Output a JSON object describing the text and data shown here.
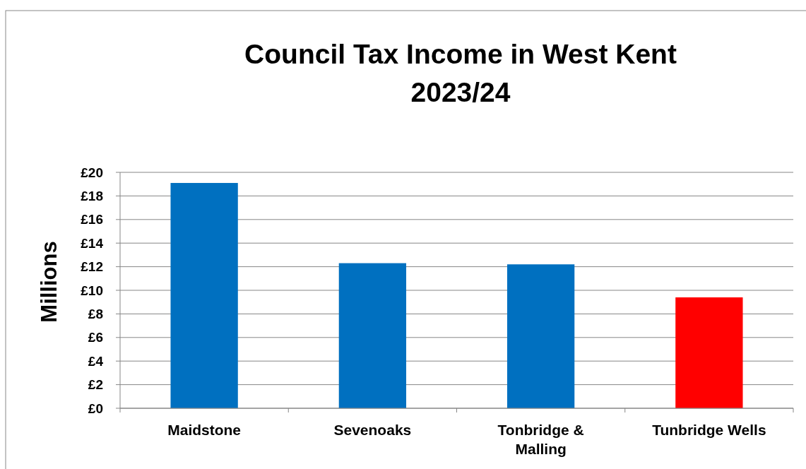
{
  "chart_data": {
    "type": "bar",
    "title": "Council Tax Income in West Kent\n2023/24",
    "ylabel": "Millions",
    "categories": [
      "Maidstone",
      "Sevenoaks",
      "Tonbridge & Malling",
      "Tunbridge Wells"
    ],
    "values": [
      19.1,
      12.3,
      12.2,
      9.4
    ],
    "colors": [
      "#0070c0",
      "#0070c0",
      "#0070c0",
      "#ff0000"
    ],
    "ylim": [
      0,
      20
    ],
    "yticks": [
      {
        "value": 0,
        "label": "£0"
      },
      {
        "value": 2,
        "label": "£2"
      },
      {
        "value": 4,
        "label": "£4"
      },
      {
        "value": 6,
        "label": "£6"
      },
      {
        "value": 8,
        "label": "£8"
      },
      {
        "value": 10,
        "label": "£10"
      },
      {
        "value": 12,
        "label": "£12"
      },
      {
        "value": 14,
        "label": "£14"
      },
      {
        "value": 16,
        "label": "£16"
      },
      {
        "value": 18,
        "label": "£18"
      },
      {
        "value": 20,
        "label": "£20"
      }
    ],
    "grid": "y"
  }
}
